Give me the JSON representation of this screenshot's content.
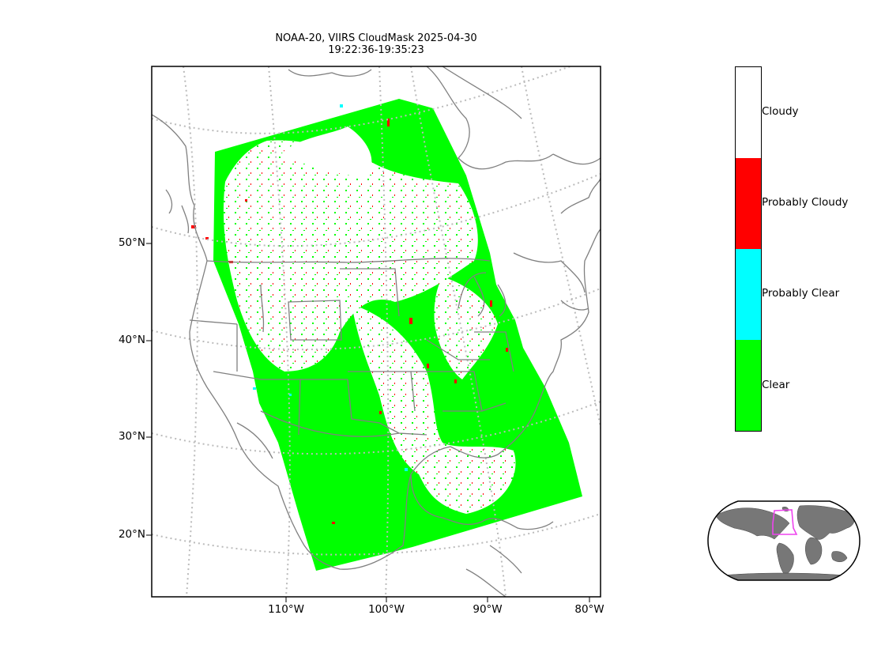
{
  "title": {
    "line1": "NOAA-20, VIIRS CloudMask 2025-04-30",
    "line2": "19:22:36-19:35:23"
  },
  "map": {
    "lat_labels": [
      "50°N",
      "40°N",
      "30°N",
      "20°N"
    ],
    "lon_labels": [
      "110°W",
      "100°W",
      "90°W",
      "80°W"
    ],
    "gridline_color": "#bbbbbb",
    "coastline_color": "#808080"
  },
  "colorbar": {
    "classes": [
      {
        "label": "Cloudy",
        "color": "#ffffff"
      },
      {
        "label": "Probably Cloudy",
        "color": "#ff0000"
      },
      {
        "label": "Probably Clear",
        "color": "#00ffff"
      },
      {
        "label": "Clear",
        "color": "#00ff00"
      }
    ]
  },
  "inset": {
    "land_color": "#777777",
    "ocean_color": "#ffffff",
    "swath_outline_color": "#ee44ee"
  }
}
